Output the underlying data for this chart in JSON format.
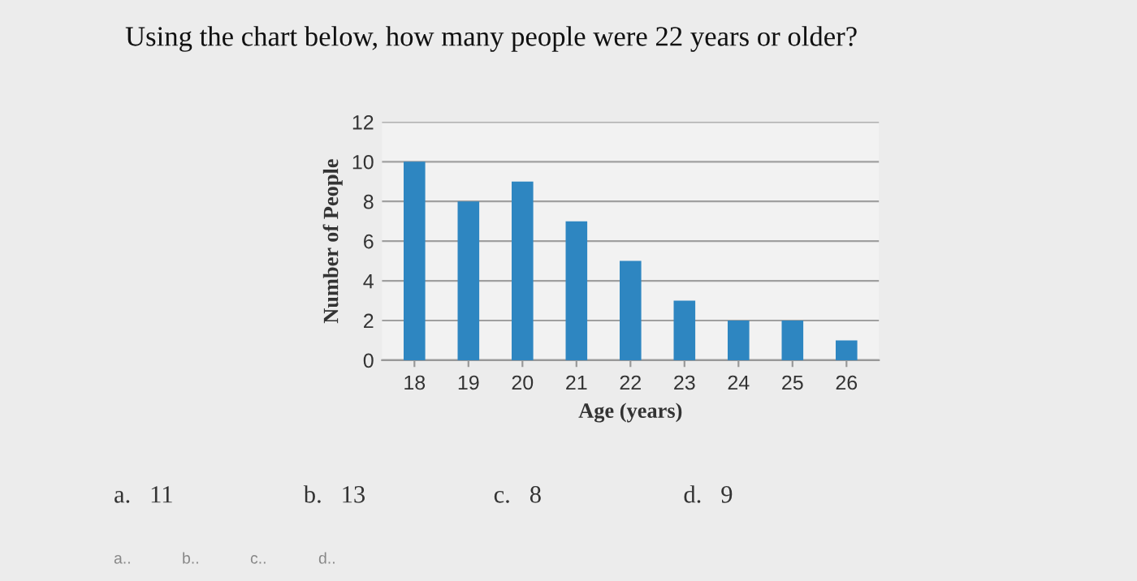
{
  "chart_data": {
    "type": "bar",
    "title": "Using the chart below, how many people were 22 years or older?",
    "xlabel": "Age (years)",
    "ylabel": "Number of People",
    "categories": [
      "18",
      "19",
      "20",
      "21",
      "22",
      "23",
      "24",
      "25",
      "26"
    ],
    "values": [
      10,
      8,
      9,
      7,
      5,
      3,
      2,
      2,
      1
    ],
    "color": "#2e86c1",
    "ylim": [
      0,
      12
    ],
    "yticks": [
      0,
      2,
      4,
      6,
      8,
      10,
      12
    ],
    "grid": "y",
    "legend": false,
    "annotations": [
      "a.   11",
      "b.   13",
      "c.   8",
      "d.   9",
      "a..",
      "b..",
      "c..",
      "d.."
    ]
  }
}
